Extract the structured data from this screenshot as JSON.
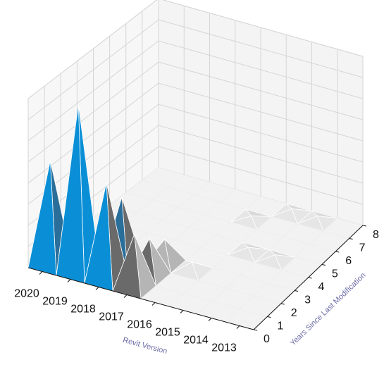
{
  "chart_data": {
    "type": "surface3d",
    "title": "",
    "xlabel": "Revit Version",
    "ylabel": "Years Since Last Modification",
    "zlabel": "",
    "x_ticks": [
      "2020",
      "2019",
      "2018",
      "2017",
      "2016",
      "2015",
      "2014",
      "2013"
    ],
    "y_ticks": [
      "0",
      "1",
      "2",
      "3",
      "4",
      "5",
      "6",
      "7",
      "8"
    ],
    "grid": true,
    "z_tick_labels_visible": false,
    "cells": [
      {
        "version": "2020",
        "years": 0,
        "value": 0.62
      },
      {
        "version": "2019",
        "years": 0,
        "value": 1.0
      },
      {
        "version": "2018",
        "years": 0,
        "value": 0.58
      },
      {
        "version": "2018",
        "years": 1,
        "value": 0.42
      },
      {
        "version": "2017",
        "years": 0,
        "value": 0.32
      },
      {
        "version": "2017",
        "years": 1,
        "value": 0.22
      },
      {
        "version": "2017",
        "years": 2,
        "value": 0.14
      },
      {
        "version": "2016",
        "years": 2,
        "value": 0.05
      },
      {
        "version": "2015",
        "years": 4,
        "value": 0.03
      },
      {
        "version": "2014",
        "years": 4,
        "value": 0.03
      },
      {
        "version": "2016",
        "years": 6,
        "value": 0.02
      },
      {
        "version": "2015",
        "years": 7,
        "value": 0.03
      },
      {
        "version": "2014",
        "years": 7,
        "value": 0.03
      }
    ],
    "colors": {
      "peak": "#0a8fd6",
      "high": "#2a6e9a",
      "mid": "#6a6a6a",
      "low": "#b5b5b5",
      "flat": "#f2f2f2",
      "dark": "#333333"
    }
  }
}
